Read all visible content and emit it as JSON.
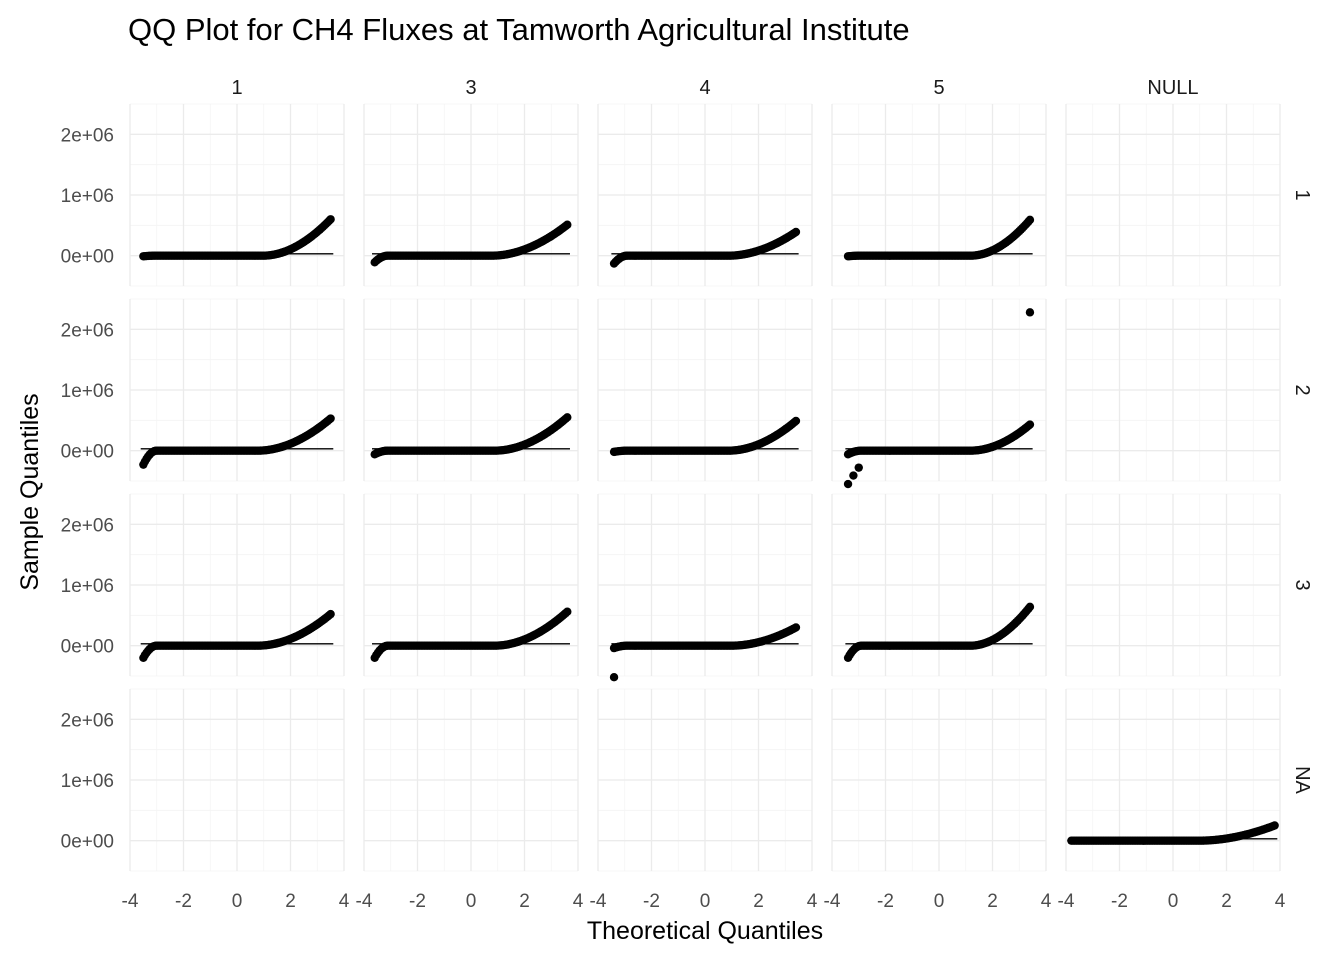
{
  "chart_data": {
    "type": "scatter",
    "subtype": "qq-plot-faceted",
    "title": "QQ Plot for CH4 Fluxes at Tamworth Agricultural Institute",
    "xlabel": "Theoretical Quantiles",
    "ylabel": "Sample Quantiles",
    "xlim": [
      -4,
      4
    ],
    "ylim": [
      -500000,
      2500000
    ],
    "x_ticks": [
      -4,
      -2,
      0,
      2,
      4
    ],
    "x_tick_labels": [
      "-4",
      "-2",
      "0",
      "2",
      "4"
    ],
    "y_ticks": [
      0,
      1000000,
      2000000
    ],
    "y_tick_labels": [
      "0e+00",
      "1e+06",
      "2e+06"
    ],
    "grid": true,
    "theme": "minimal",
    "point_color": "#000000",
    "line_color": "#000000",
    "col_facets": [
      "1",
      "3",
      "4",
      "5",
      "NULL"
    ],
    "row_facets": [
      "1",
      "2",
      "3",
      "NA"
    ],
    "panels": [
      {
        "row": "1",
        "col": "1",
        "theory_range": [
          -3.5,
          3.5
        ],
        "tail_start": 1.0,
        "max": 600000,
        "min": -10000,
        "low_outliers": [],
        "high_outliers": [],
        "line_end": 30000
      },
      {
        "row": "1",
        "col": "3",
        "theory_range": [
          -3.6,
          3.6
        ],
        "tail_start": 0.8,
        "max": 510000,
        "min": -110000,
        "low_outliers": [],
        "high_outliers": [],
        "line_end": 30000
      },
      {
        "row": "1",
        "col": "4",
        "theory_range": [
          -3.4,
          3.4
        ],
        "tail_start": 0.9,
        "max": 390000,
        "min": -130000,
        "low_outliers": [],
        "high_outliers": [],
        "line_end": 30000
      },
      {
        "row": "1",
        "col": "5",
        "theory_range": [
          -3.4,
          3.4
        ],
        "tail_start": 1.2,
        "max": 590000,
        "min": -10000,
        "low_outliers": [],
        "high_outliers": [],
        "line_end": 30000
      },
      {
        "row": "2",
        "col": "1",
        "theory_range": [
          -3.5,
          3.5
        ],
        "tail_start": 0.8,
        "max": 530000,
        "min": -230000,
        "low_outliers": [],
        "high_outliers": [],
        "line_end": 30000
      },
      {
        "row": "2",
        "col": "3",
        "theory_range": [
          -3.6,
          3.6
        ],
        "tail_start": 0.9,
        "max": 550000,
        "min": -60000,
        "low_outliers": [],
        "high_outliers": [],
        "line_end": 30000
      },
      {
        "row": "2",
        "col": "4",
        "theory_range": [
          -3.4,
          3.4
        ],
        "tail_start": 0.9,
        "max": 490000,
        "min": -20000,
        "low_outliers": [],
        "high_outliers": [],
        "line_end": 30000
      },
      {
        "row": "2",
        "col": "5",
        "theory_range": [
          -3.4,
          3.4
        ],
        "tail_start": 1.2,
        "max": 430000,
        "min": -60000,
        "low_outliers": [
          [
            -3.4,
            -550000
          ],
          [
            -3.2,
            -410000
          ],
          [
            -3.0,
            -280000
          ]
        ],
        "high_outliers": [
          [
            3.4,
            2280000
          ]
        ],
        "line_end": 30000
      },
      {
        "row": "3",
        "col": "1",
        "theory_range": [
          -3.5,
          3.5
        ],
        "tail_start": 0.8,
        "max": 520000,
        "min": -200000,
        "low_outliers": [],
        "high_outliers": [],
        "line_end": 30000
      },
      {
        "row": "3",
        "col": "3",
        "theory_range": [
          -3.6,
          3.6
        ],
        "tail_start": 0.9,
        "max": 560000,
        "min": -200000,
        "low_outliers": [],
        "high_outliers": [],
        "line_end": 30000
      },
      {
        "row": "3",
        "col": "4",
        "theory_range": [
          -3.4,
          3.4
        ],
        "tail_start": 1.0,
        "max": 300000,
        "min": -40000,
        "low_outliers": [
          [
            -3.4,
            -520000
          ]
        ],
        "high_outliers": [],
        "line_end": 30000
      },
      {
        "row": "3",
        "col": "5",
        "theory_range": [
          -3.4,
          3.4
        ],
        "tail_start": 1.2,
        "max": 640000,
        "min": -200000,
        "low_outliers": [],
        "high_outliers": [],
        "line_end": 30000
      },
      {
        "row": "NA",
        "col": "NULL",
        "theory_range": [
          -3.8,
          3.8
        ],
        "tail_start": 1.0,
        "max": 250000,
        "min": 0,
        "low_outliers": [],
        "high_outliers": [],
        "line_end": 30000
      }
    ]
  }
}
